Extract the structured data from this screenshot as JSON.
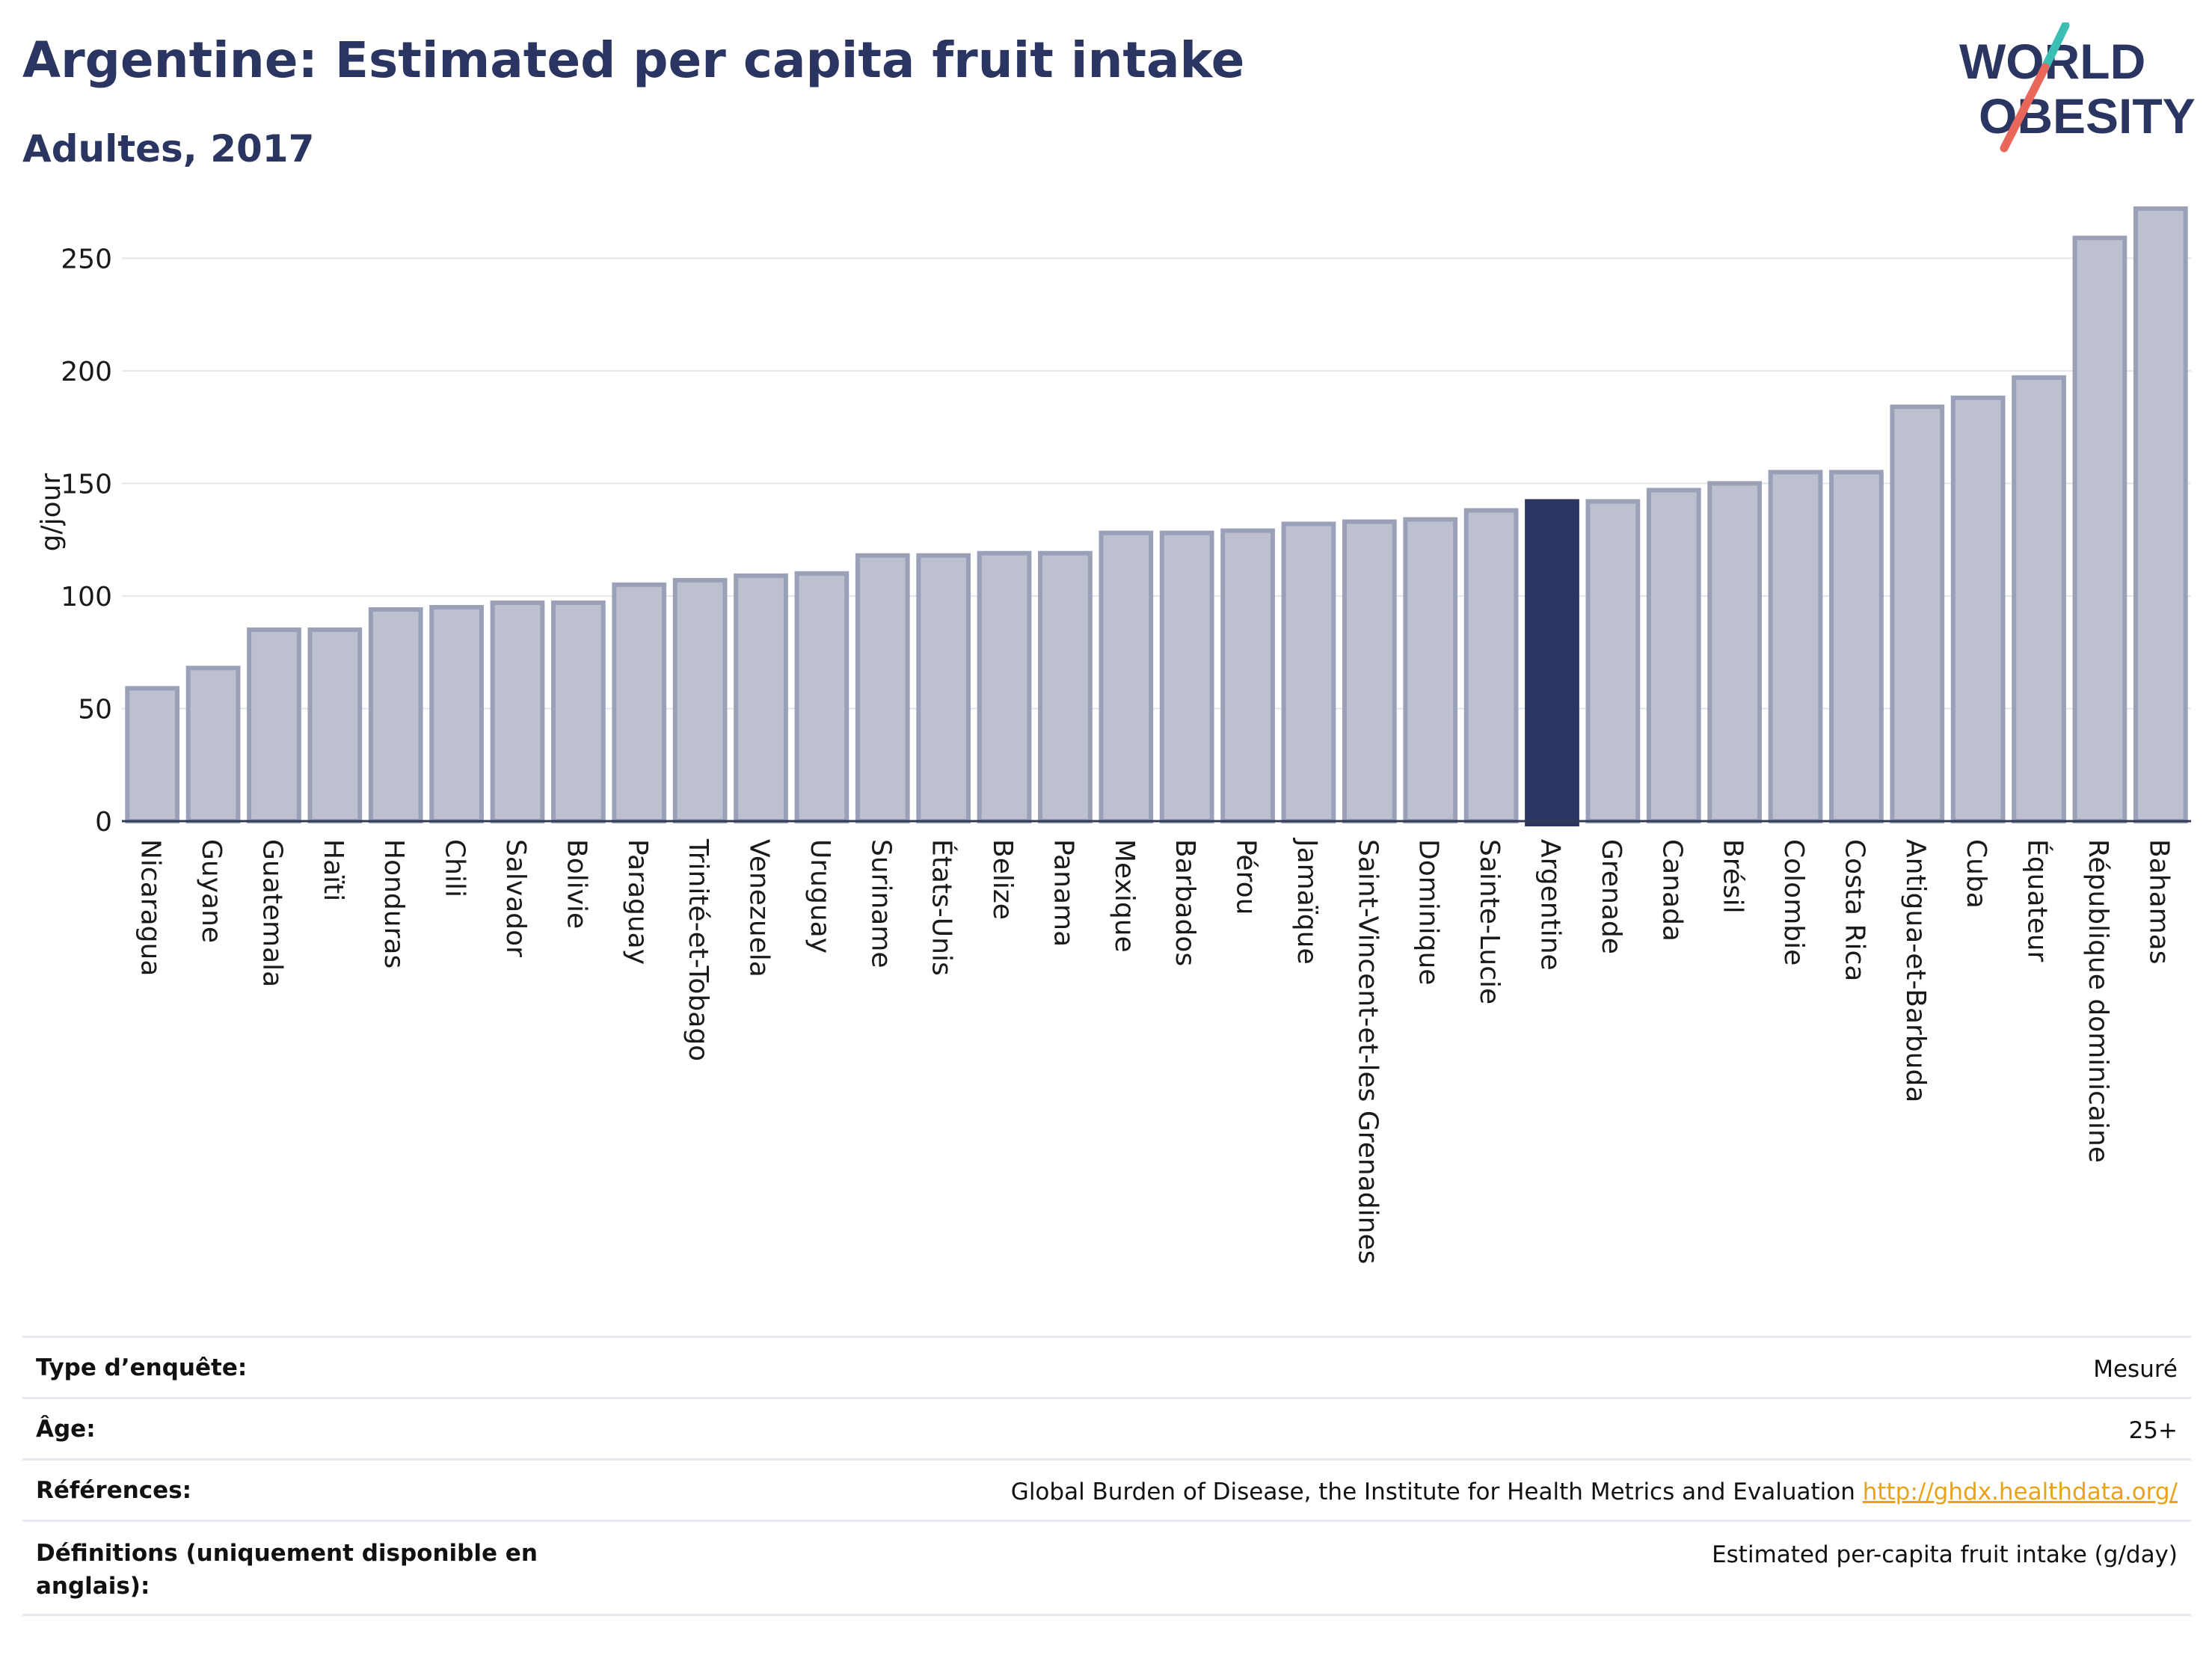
{
  "header": {
    "title": "Argentine: Estimated per capita fruit intake",
    "subtitle": "Adultes, 2017"
  },
  "logo": {
    "line1": "WORLD",
    "line2": "OBESITY",
    "accent_teal": "#3bbfb4",
    "accent_red": "#e8665a",
    "text_color": "#2b3562"
  },
  "chart_data": {
    "type": "bar",
    "ylabel": "g/jour",
    "xlabel": "",
    "ylim": [
      0,
      275
    ],
    "yticks": [
      0,
      50,
      100,
      150,
      200,
      250
    ],
    "grid": true,
    "highlight": "Argentine",
    "colors": {
      "bar": "#bcc0cf",
      "bar_border": "#9aa0b8",
      "highlight": "#2b3562",
      "grid": "#e3e5ec"
    },
    "categories": [
      "Nicaragua",
      "Guyane",
      "Guatemala",
      "Haïti",
      "Honduras",
      "Chili",
      "Salvador",
      "Bolivie",
      "Paraguay",
      "Trinité-et-Tobago",
      "Venezuela",
      "Uruguay",
      "Suriname",
      "États-Unis",
      "Belize",
      "Panama",
      "Mexique",
      "Barbados",
      "Pérou",
      "Jamaïque",
      "Saint-Vincent-et-les Grenadines",
      "Dominique",
      "Sainte-Lucie",
      "Argentine",
      "Grenade",
      "Canada",
      "Brésil",
      "Colombie",
      "Costa Rica",
      "Antigua-et-Barbuda",
      "Cuba",
      "Équateur",
      "République dominicaine",
      "Bahamas"
    ],
    "values": [
      59,
      68,
      85,
      85,
      94,
      95,
      97,
      97,
      105,
      107,
      109,
      110,
      118,
      118,
      119,
      119,
      128,
      128,
      129,
      132,
      133,
      134,
      138,
      142,
      142,
      147,
      150,
      155,
      155,
      184,
      188,
      197,
      259,
      272
    ]
  },
  "info": {
    "rows": [
      {
        "label": "Type d’enquête:",
        "value": "Mesuré"
      },
      {
        "label": "Âge:",
        "value": "25+"
      },
      {
        "label": "Références:",
        "value": "Global Burden of Disease, the Institute for Health Metrics and Evaluation",
        "link": "http://ghdx.healthdata.org/"
      },
      {
        "label": "Définitions (uniquement disponible en anglais):",
        "value": "Estimated per-capita fruit intake (g/day)"
      }
    ]
  }
}
